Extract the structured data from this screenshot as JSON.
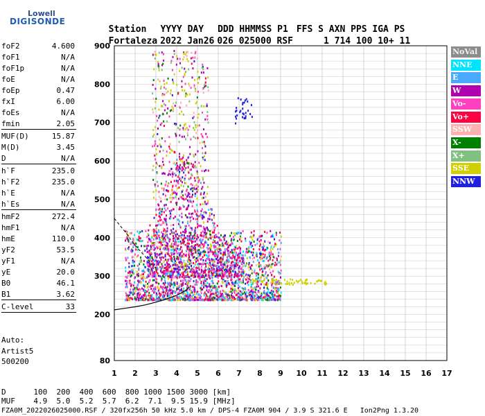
{
  "logo": {
    "line1": "Lowell",
    "line2": "DIGISONDE"
  },
  "header": {
    "line1": [
      "Station",
      "YYYY DAY",
      "DDD HHMMSS P1",
      "FFS S AXN PPS IGA PS"
    ],
    "line2": [
      "Fortaleza",
      "2022 Jan26",
      "026 025000 RSF",
      "1 714 100 10+ 11"
    ]
  },
  "params": [
    {
      "name": "foF2",
      "value": "4.600"
    },
    {
      "name": "foF1",
      "value": "N/A"
    },
    {
      "name": "foF1p",
      "value": "N/A"
    },
    {
      "name": "foE",
      "value": "N/A"
    },
    {
      "name": "foEp",
      "value": "0.47"
    },
    {
      "name": "fxI",
      "value": "6.00"
    },
    {
      "name": "foEs",
      "value": "N/A"
    },
    {
      "name": "fmin",
      "value": "2.05"
    },
    {
      "name": "MUF(D)",
      "value": "15.87"
    },
    {
      "name": "M(D)",
      "value": "3.45"
    },
    {
      "name": "D",
      "value": "N/A"
    },
    {
      "name": "h`F",
      "value": "235.0"
    },
    {
      "name": "h`F2",
      "value": "235.0"
    },
    {
      "name": "h`E",
      "value": "N/A"
    },
    {
      "name": "h`Es",
      "value": "N/A"
    },
    {
      "name": "hmF2",
      "value": "272.4"
    },
    {
      "name": "hmF1",
      "value": "N/A"
    },
    {
      "name": "hmE",
      "value": "110.0"
    },
    {
      "name": "yF2",
      "value": "53.5"
    },
    {
      "name": "yF1",
      "value": "N/A"
    },
    {
      "name": "yE",
      "value": "20.0"
    },
    {
      "name": "B0",
      "value": "46.1"
    },
    {
      "name": "B1",
      "value": "3.62"
    },
    {
      "name": "C-level",
      "value": "33"
    }
  ],
  "auto": {
    "line1": "Auto:",
    "line2": "Artist5",
    "line3": "500200"
  },
  "legend": [
    {
      "label": "NoVal",
      "color": "#8c8c8c"
    },
    {
      "label": "NNE",
      "color": "#00e5ff"
    },
    {
      "label": "E",
      "color": "#4aa8ff"
    },
    {
      "label": "W",
      "color": "#b000b0"
    },
    {
      "label": "Vo-",
      "color": "#ff40c0"
    },
    {
      "label": "Vo+",
      "color": "#ff0040"
    },
    {
      "label": "SSW",
      "color": "#ffb0b0"
    },
    {
      "label": "X-",
      "color": "#008000"
    },
    {
      "label": "X+",
      "color": "#80c080"
    },
    {
      "label": "SSE",
      "color": "#d0d000"
    },
    {
      "label": "NNW",
      "color": "#2020e0"
    }
  ],
  "footer": {
    "line1": "D      100  200  400  600  800 1000 1500 3000 [km]",
    "line2": "MUF    4.9  5.0  5.2  5.7  6.2  7.1  9.5 15.9 [MHz]",
    "line3": "FZA0M_2022026025000.RSF / 320fx256h 50 kHz 5.0 km / DPS-4 FZA0M 904 / 3.9 S 321.6 E   Ion2Png 1.3.20"
  },
  "chart_data": {
    "type": "scatter",
    "xlabel": "",
    "ylabel": "",
    "xlim": [
      1,
      17
    ],
    "ylim": [
      80,
      900
    ],
    "xticks": [
      1,
      2,
      3,
      4,
      5,
      6,
      7,
      8,
      9,
      10,
      11,
      12,
      13,
      14,
      15,
      16,
      17
    ],
    "yticks": [
      80,
      200,
      300,
      400,
      500,
      600,
      700,
      800,
      900
    ],
    "grid": true,
    "legend_position": "right",
    "echo_regions": [
      {
        "name": "main trace",
        "x_range": [
          1.5,
          9.0
        ],
        "y_range": [
          240,
          420
        ]
      },
      {
        "name": "spread F",
        "x_range": [
          2.5,
          7.2
        ],
        "y_range": [
          300,
          620
        ]
      },
      {
        "name": "upper spread",
        "x_range": [
          2.8,
          5.5
        ],
        "y_range": [
          500,
          890
        ]
      },
      {
        "name": "high echo",
        "x_range": [
          6.8,
          7.6
        ],
        "y_range": [
          700,
          770
        ]
      },
      {
        "name": "horizontal trace",
        "x_range": [
          7.5,
          11.2
        ],
        "y_range": [
          280,
          295
        ]
      }
    ],
    "profile_curve": {
      "x": [
        1.0,
        1.5,
        2.0,
        2.5,
        3.0,
        3.5,
        4.0,
        4.3,
        4.5,
        4.6
      ],
      "y": [
        212,
        216,
        220,
        225,
        232,
        240,
        250,
        258,
        265,
        272
      ]
    },
    "profile_curve_upper": {
      "x": [
        1.0,
        1.3,
        1.6,
        2.0,
        2.5,
        3.0
      ],
      "y": [
        450,
        430,
        410,
        380,
        350,
        320
      ]
    }
  }
}
